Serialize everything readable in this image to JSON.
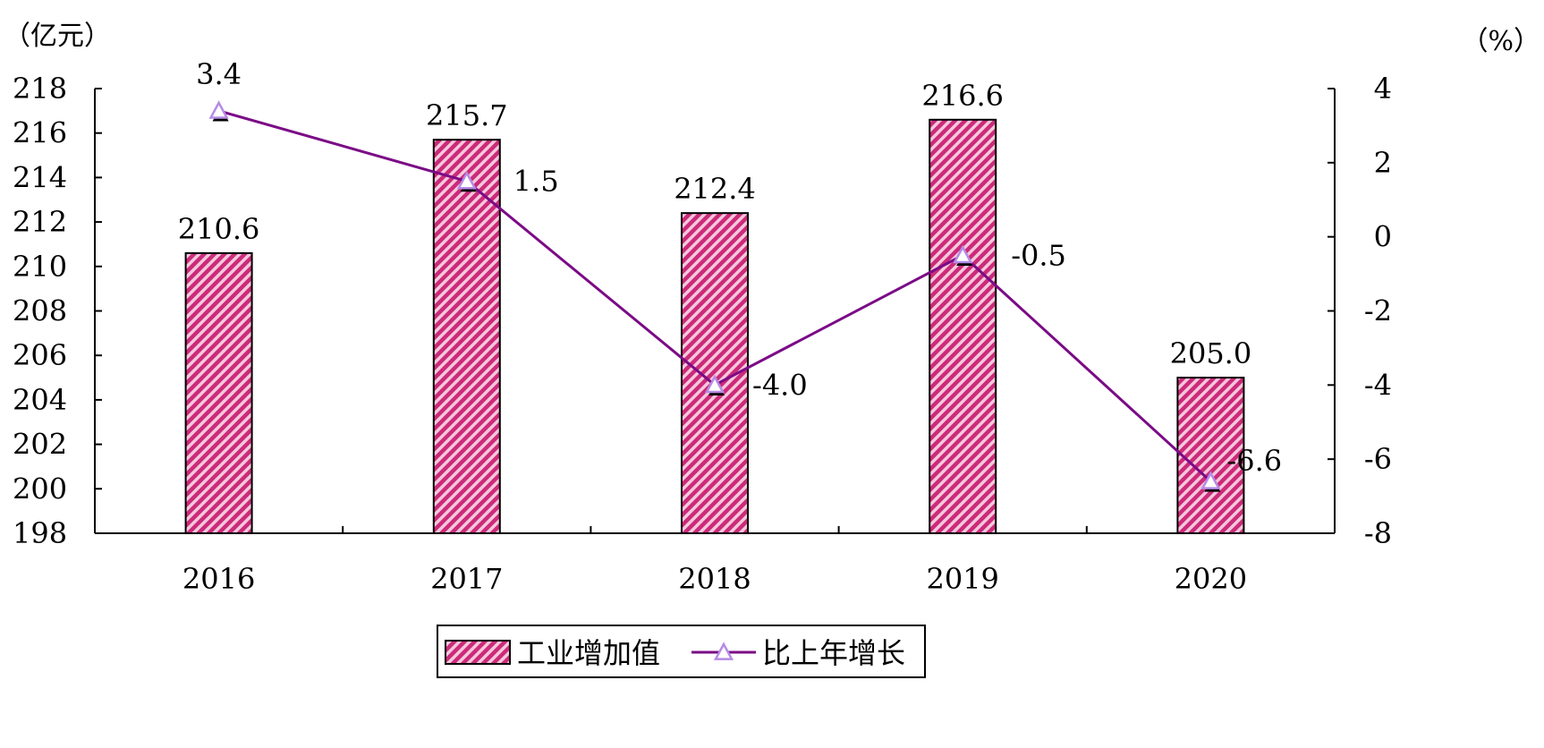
{
  "chart_data": {
    "type": "bar",
    "categories": [
      "2016",
      "2017",
      "2018",
      "2019",
      "2020"
    ],
    "series": [
      {
        "name": "工业增加值",
        "type": "bar",
        "axis": "left",
        "values": [
          210.6,
          215.7,
          212.4,
          216.6,
          205.0
        ],
        "labels": [
          "210.6",
          "215.7",
          "212.4",
          "216.6",
          "205.0"
        ],
        "color": "#cc2a7a",
        "pattern": "diagonal-hatch"
      },
      {
        "name": "比上年增长",
        "type": "line",
        "axis": "right",
        "values": [
          3.4,
          1.5,
          -4.0,
          -0.5,
          -6.6
        ],
        "labels": [
          "3.4",
          "1.5",
          "-4.0",
          "-0.5",
          "-6.6"
        ],
        "color": "#7b0b86",
        "marker": "triangle"
      }
    ],
    "left_axis": {
      "unit": "（亿元）",
      "ylim": [
        198,
        218
      ],
      "ticks": [
        "198",
        "200",
        "202",
        "204",
        "206",
        "208",
        "210",
        "212",
        "214",
        "216",
        "218"
      ]
    },
    "right_axis": {
      "unit": "（%）",
      "ylim": [
        -8,
        4
      ],
      "ticks": [
        "-8",
        "-6",
        "-4",
        "-2",
        "0",
        "2",
        "4"
      ]
    },
    "grid": false,
    "legend_position": "bottom-center"
  }
}
